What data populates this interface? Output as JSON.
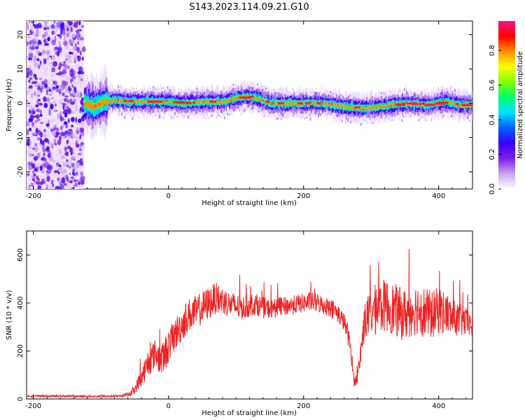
{
  "figure": {
    "title": "S143.2023.114.09.21.G10"
  },
  "chart_data": [
    {
      "type": "heatmap",
      "xlabel": "Height of straight line (km)",
      "ylabel": "Frequency (Hz)",
      "xlim": [
        -210,
        450
      ],
      "ylim": [
        -25,
        24
      ],
      "x_ticks": [
        -200,
        0,
        200,
        400
      ],
      "y_ticks": [
        -20,
        -10,
        0,
        10,
        20
      ],
      "noise_region_x": [
        -210,
        -125
      ],
      "ridge": {
        "x": [
          -125,
          -110,
          -95,
          -80,
          -60,
          -40,
          -20,
          0,
          20,
          40,
          60,
          80,
          100,
          115,
          130,
          150,
          170,
          200,
          230,
          260,
          290,
          320,
          350,
          380,
          410,
          430,
          450
        ],
        "freq": [
          0,
          -1,
          0.5,
          1,
          0.5,
          0.5,
          0.5,
          0.5,
          0,
          0.3,
          0.5,
          0.5,
          1.5,
          2,
          1.5,
          0,
          0,
          0,
          0,
          -1,
          -1.5,
          -0.8,
          0,
          -0.5,
          0.5,
          -0.5,
          -0.5
        ]
      },
      "colorbar": {
        "label": "Normalized spectral amplitude",
        "range": [
          0,
          0.97
        ],
        "ticks": [
          0.0,
          0.2,
          0.4,
          0.6,
          0.8
        ],
        "colormap": [
          "#ffffff",
          "#c9a4ef",
          "#7b1fe8",
          "#3a00ff",
          "#0060ff",
          "#00e0ff",
          "#00ff70",
          "#7fff00",
          "#ffff00",
          "#ff9000",
          "#ff0000",
          "#ff1080"
        ]
      },
      "colors": {
        "noise": "#6a10e6",
        "ridge_core": "#ff2020"
      }
    },
    {
      "type": "line",
      "xlabel": "Height of straight line (km)",
      "ylabel": "SNR (10 * v/v)",
      "xlim": [
        -210,
        450
      ],
      "ylim": [
        0,
        700
      ],
      "x_ticks": [
        -200,
        0,
        200,
        400
      ],
      "y_ticks": [
        0,
        200,
        400,
        600
      ],
      "series": [
        {
          "color": "#ee2222",
          "x": [
            -210,
            -150,
            -100,
            -70,
            -58,
            -50,
            -40,
            -30,
            -20,
            -10,
            0,
            10,
            20,
            30,
            40,
            50,
            60,
            70,
            80,
            90,
            100,
            110,
            120,
            130,
            140,
            150,
            160,
            170,
            180,
            190,
            200,
            210,
            220,
            230,
            240,
            250,
            260,
            265,
            270,
            275,
            280,
            290,
            300,
            310,
            320,
            330,
            340,
            350,
            360,
            370,
            380,
            390,
            400,
            410,
            420,
            430,
            440,
            450
          ],
          "y": [
            12,
            12,
            11,
            12,
            20,
            40,
            90,
            150,
            190,
            160,
            220,
            270,
            310,
            350,
            360,
            380,
            400,
            420,
            410,
            395,
            385,
            380,
            390,
            395,
            380,
            375,
            380,
            385,
            390,
            395,
            400,
            405,
            400,
            390,
            380,
            360,
            320,
            280,
            200,
            70,
            90,
            320,
            360,
            380,
            390,
            380,
            360,
            350,
            370,
            380,
            360,
            350,
            370,
            360,
            340,
            330,
            320,
            300
          ],
          "amplitude": [
            4,
            4,
            4,
            4,
            10,
            20,
            40,
            60,
            60,
            70,
            70,
            70,
            70,
            70,
            70,
            70,
            70,
            65,
            60,
            55,
            55,
            50,
            50,
            45,
            45,
            40,
            40,
            40,
            40,
            40,
            40,
            40,
            40,
            40,
            40,
            40,
            40,
            40,
            40,
            20,
            30,
            80,
            100,
            110,
            110,
            110,
            110,
            110,
            110,
            110,
            110,
            100,
            100,
            90,
            80,
            70,
            60,
            50
          ]
        }
      ]
    }
  ]
}
